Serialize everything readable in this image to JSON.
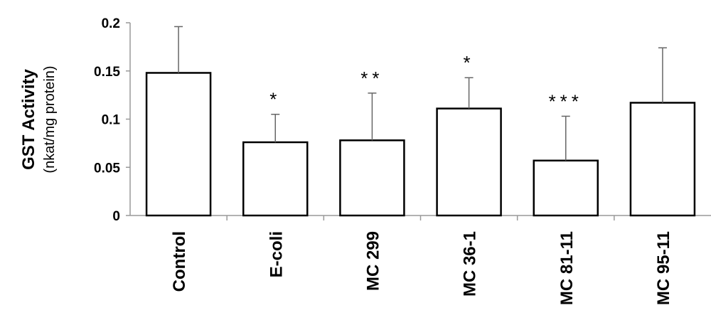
{
  "chart_data": {
    "type": "bar",
    "title": "",
    "ylabel": "GST Activity",
    "ylabel_unit": "(nkat/mg protein)",
    "xlabel": "",
    "categories": [
      "Control",
      "E-coli",
      "MC 299",
      "MC 36-1",
      "MC 81-11",
      "MC 95-11"
    ],
    "values": [
      0.148,
      0.076,
      0.078,
      0.111,
      0.057,
      0.117
    ],
    "error_upper": [
      0.048,
      0.029,
      0.049,
      0.032,
      0.046,
      0.057
    ],
    "significance": [
      "",
      "*",
      "**",
      "*",
      "***",
      ""
    ],
    "ylim": [
      0,
      0.2
    ],
    "yticks": [
      "0",
      "0.05",
      "0.1",
      "0.15",
      "0.2"
    ],
    "ytick_values": [
      0,
      0.05,
      0.1,
      0.15,
      0.2
    ],
    "grid": false,
    "bar_fill": "#ffffff",
    "bar_stroke": "#000000",
    "axis_color": "#999999"
  }
}
